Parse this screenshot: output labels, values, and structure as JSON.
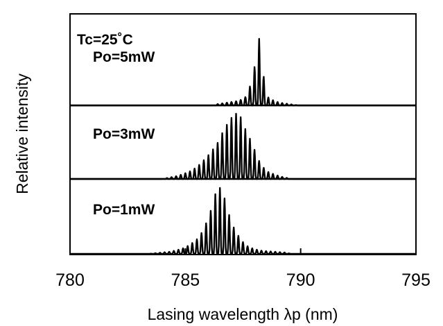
{
  "chart_data": {
    "type": "line",
    "title": "",
    "xlabel": "Lasing wavelength λp (nm)",
    "ylabel": "Relative intensity",
    "xlim": [
      780,
      795
    ],
    "xticks": [
      "780",
      "785",
      "790",
      "795"
    ],
    "grid": false,
    "legend": "none",
    "annotations": [
      "Tc=25˚C"
    ],
    "series": [
      {
        "name": "Po=5mW",
        "mode_spacing_nm": 0.2,
        "center_nm": 788.2,
        "main_peaks": [
          {
            "x": 787.9,
            "y": 0.35
          },
          {
            "x": 788.2,
            "y": 0.96
          }
        ],
        "envelope": [
          [
            786.2,
            0.0
          ],
          [
            786.4,
            0.02
          ],
          [
            786.6,
            0.03
          ],
          [
            786.8,
            0.04
          ],
          [
            787.0,
            0.05
          ],
          [
            787.2,
            0.06
          ],
          [
            787.4,
            0.08
          ],
          [
            787.6,
            0.12
          ],
          [
            787.9,
            0.35
          ],
          [
            788.2,
            0.96
          ],
          [
            788.5,
            0.14
          ],
          [
            788.7,
            0.09
          ],
          [
            788.9,
            0.06
          ],
          [
            789.1,
            0.04
          ],
          [
            789.3,
            0.03
          ],
          [
            789.5,
            0.02
          ],
          [
            789.7,
            0.01
          ],
          [
            789.9,
            0.0
          ]
        ]
      },
      {
        "name": "Po=3mW",
        "mode_spacing_nm": 0.2,
        "center_nm": 787.2,
        "envelope": [
          [
            784.0,
            0.0
          ],
          [
            784.3,
            0.02
          ],
          [
            784.6,
            0.04
          ],
          [
            784.9,
            0.07
          ],
          [
            785.2,
            0.11
          ],
          [
            785.5,
            0.17
          ],
          [
            785.8,
            0.27
          ],
          [
            786.1,
            0.38
          ],
          [
            786.4,
            0.52
          ],
          [
            786.6,
            0.66
          ],
          [
            786.8,
            0.78
          ],
          [
            787.0,
            0.88
          ],
          [
            787.2,
            0.94
          ],
          [
            787.4,
            0.89
          ],
          [
            787.6,
            0.72
          ],
          [
            787.8,
            0.58
          ],
          [
            788.0,
            0.42
          ],
          [
            788.2,
            0.26
          ],
          [
            788.4,
            0.16
          ],
          [
            788.6,
            0.1
          ],
          [
            788.9,
            0.06
          ],
          [
            789.2,
            0.03
          ],
          [
            789.6,
            0.0
          ]
        ]
      },
      {
        "name": "Po=1mW",
        "mode_spacing_nm": 0.2,
        "center_nm": 786.5,
        "envelope": [
          [
            783.4,
            0.0
          ],
          [
            783.7,
            0.01
          ],
          [
            784.0,
            0.02
          ],
          [
            784.3,
            0.03
          ],
          [
            784.6,
            0.05
          ],
          [
            784.9,
            0.08
          ],
          [
            785.2,
            0.13
          ],
          [
            785.5,
            0.21
          ],
          [
            785.7,
            0.3
          ],
          [
            785.9,
            0.44
          ],
          [
            786.1,
            0.62
          ],
          [
            786.3,
            0.86
          ],
          [
            786.5,
            0.95
          ],
          [
            786.7,
            0.8
          ],
          [
            786.9,
            0.56
          ],
          [
            787.1,
            0.38
          ],
          [
            787.3,
            0.26
          ],
          [
            787.5,
            0.17
          ],
          [
            787.7,
            0.11
          ],
          [
            787.9,
            0.08
          ],
          [
            788.2,
            0.05
          ],
          [
            788.5,
            0.04
          ],
          [
            788.9,
            0.03
          ],
          [
            789.3,
            0.02
          ],
          [
            789.6,
            0.0
          ]
        ]
      }
    ]
  }
}
